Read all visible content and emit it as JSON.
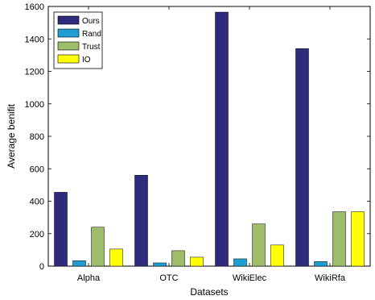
{
  "chart_data": {
    "type": "bar",
    "title": "",
    "xlabel": "Datasets",
    "ylabel": "Average benifit",
    "categories": [
      "Alpha",
      "OTC",
      "WikiElec",
      "WikiRfa"
    ],
    "ylim": [
      0,
      1600
    ],
    "yticks": [
      0,
      200,
      400,
      600,
      800,
      1000,
      1200,
      1400,
      1600
    ],
    "grid": false,
    "legend_position": "top-left",
    "series": [
      {
        "name": "Ours",
        "color": "#2e2a7c",
        "values": [
          455,
          560,
          1565,
          1340
        ]
      },
      {
        "name": "Rand",
        "color": "#1e9ed1",
        "values": [
          33,
          20,
          45,
          28
        ]
      },
      {
        "name": "Trust",
        "color": "#9dbd6a",
        "values": [
          240,
          95,
          260,
          335
        ]
      },
      {
        "name": "IO",
        "color": "#ffff00",
        "values": [
          105,
          55,
          130,
          335
        ]
      }
    ]
  }
}
